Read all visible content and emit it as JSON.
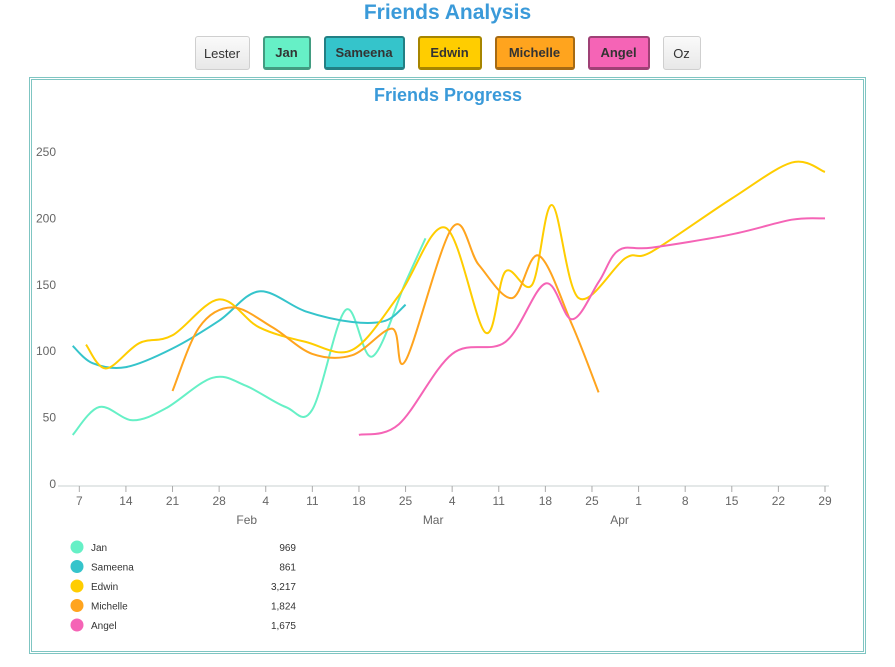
{
  "header": {
    "title": "Friends Analysis"
  },
  "buttons": [
    {
      "label": "Lester",
      "active": false,
      "color": "#f2f2f2"
    },
    {
      "label": "Jan",
      "active": true,
      "color": "#66f0c6"
    },
    {
      "label": "Sameena",
      "active": true,
      "color": "#35c4cb"
    },
    {
      "label": "Edwin",
      "active": true,
      "color": "#ffcd00"
    },
    {
      "label": "Michelle",
      "active": true,
      "color": "#ffa41e"
    },
    {
      "label": "Angel",
      "active": true,
      "color": "#f564b6"
    },
    {
      "label": "Oz",
      "active": false,
      "color": "#f2f2f2"
    }
  ],
  "chart_data": {
    "type": "line",
    "title": "Friends Progress",
    "grid": false,
    "legend_position": "bottom-left",
    "x_range": [
      "2015-01-05",
      "2015-04-29"
    ],
    "ylim": [
      0,
      250
    ],
    "y_ticks": [
      "0",
      "50",
      "100",
      "150",
      "200",
      "250"
    ],
    "x_ticks": [
      {
        "date": "2015-01-07",
        "label": "7"
      },
      {
        "date": "2015-01-14",
        "label": "14"
      },
      {
        "date": "2015-01-21",
        "label": "21"
      },
      {
        "date": "2015-01-28",
        "label": "28"
      },
      {
        "date": "2015-02-04",
        "label": "4",
        "month": "Feb"
      },
      {
        "date": "2015-02-11",
        "label": "11"
      },
      {
        "date": "2015-02-18",
        "label": "18"
      },
      {
        "date": "2015-02-25",
        "label": "25"
      },
      {
        "date": "2015-03-04",
        "label": "4",
        "month": "Mar"
      },
      {
        "date": "2015-03-11",
        "label": "11"
      },
      {
        "date": "2015-03-18",
        "label": "18"
      },
      {
        "date": "2015-03-25",
        "label": "25"
      },
      {
        "date": "2015-04-01",
        "label": "1",
        "month": "Apr"
      },
      {
        "date": "2015-04-08",
        "label": "8"
      },
      {
        "date": "2015-04-15",
        "label": "15"
      },
      {
        "date": "2015-04-22",
        "label": "22"
      },
      {
        "date": "2015-04-29",
        "label": "29"
      }
    ],
    "series": [
      {
        "name": "Jan",
        "total": "969",
        "color": "#66f0c6",
        "points": [
          [
            "2015-01-06",
            37
          ],
          [
            "2015-01-10",
            58
          ],
          [
            "2015-01-15",
            48
          ],
          [
            "2015-01-20",
            57
          ],
          [
            "2015-01-27",
            80
          ],
          [
            "2015-02-01",
            74
          ],
          [
            "2015-02-07",
            58
          ],
          [
            "2015-02-11",
            56
          ],
          [
            "2015-02-16",
            131
          ],
          [
            "2015-02-20",
            96
          ],
          [
            "2015-02-25",
            152
          ],
          [
            "2015-02-28",
            185
          ]
        ]
      },
      {
        "name": "Sameena",
        "total": "861",
        "color": "#35c4cb",
        "points": [
          [
            "2015-01-06",
            104
          ],
          [
            "2015-01-09",
            91
          ],
          [
            "2015-01-14",
            88
          ],
          [
            "2015-01-21",
            102
          ],
          [
            "2015-01-28",
            123
          ],
          [
            "2015-02-03",
            145
          ],
          [
            "2015-02-10",
            130
          ],
          [
            "2015-02-17",
            122
          ],
          [
            "2015-02-22",
            123
          ],
          [
            "2015-02-25",
            135
          ]
        ]
      },
      {
        "name": "Edwin",
        "total": "3,217",
        "color": "#ffcd00",
        "points": [
          [
            "2015-01-08",
            105
          ],
          [
            "2015-01-11",
            87
          ],
          [
            "2015-01-16",
            106
          ],
          [
            "2015-01-21",
            112
          ],
          [
            "2015-01-28",
            139
          ],
          [
            "2015-02-03",
            118
          ],
          [
            "2015-02-10",
            107
          ],
          [
            "2015-02-17",
            101
          ],
          [
            "2015-02-24",
            142
          ],
          [
            "2015-03-03",
            193
          ],
          [
            "2015-03-09",
            114
          ],
          [
            "2015-03-12",
            160
          ],
          [
            "2015-03-16",
            150
          ],
          [
            "2015-03-19",
            210
          ],
          [
            "2015-03-23",
            140
          ],
          [
            "2015-03-30",
            170
          ],
          [
            "2015-04-03",
            175
          ],
          [
            "2015-04-15",
            215
          ],
          [
            "2015-04-24",
            242
          ],
          [
            "2015-04-29",
            235
          ]
        ]
      },
      {
        "name": "Michelle",
        "total": "1,824",
        "color": "#ffa41e",
        "points": [
          [
            "2015-01-21",
            70
          ],
          [
            "2015-01-25",
            118
          ],
          [
            "2015-01-30",
            133
          ],
          [
            "2015-02-05",
            118
          ],
          [
            "2015-02-11",
            98
          ],
          [
            "2015-02-17",
            97
          ],
          [
            "2015-02-23",
            117
          ],
          [
            "2015-02-25",
            93
          ],
          [
            "2015-03-04",
            193
          ],
          [
            "2015-03-08",
            165
          ],
          [
            "2015-03-13",
            140
          ],
          [
            "2015-03-17",
            172
          ],
          [
            "2015-03-22",
            120
          ],
          [
            "2015-03-26",
            69
          ]
        ]
      },
      {
        "name": "Angel",
        "total": "1,675",
        "color": "#f564b6",
        "points": [
          [
            "2015-02-18",
            37
          ],
          [
            "2015-02-24",
            45
          ],
          [
            "2015-03-04",
            98
          ],
          [
            "2015-03-12",
            107
          ],
          [
            "2015-03-18",
            151
          ],
          [
            "2015-03-22",
            124
          ],
          [
            "2015-03-26",
            152
          ],
          [
            "2015-03-29",
            176
          ],
          [
            "2015-04-03",
            178
          ],
          [
            "2015-04-15",
            188
          ],
          [
            "2015-04-24",
            199
          ],
          [
            "2015-04-29",
            200
          ]
        ]
      }
    ]
  }
}
